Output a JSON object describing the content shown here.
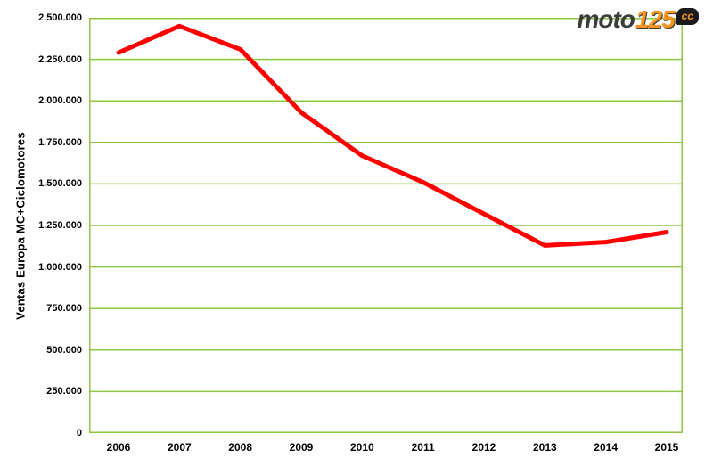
{
  "logo": {
    "word": "moto",
    "number": "125",
    "suffix": "cc"
  },
  "chart_data": {
    "type": "line",
    "title": "",
    "xlabel": "",
    "ylabel": "Ventas Europa MC+Ciclomotores",
    "categories": [
      "2006",
      "2007",
      "2008",
      "2009",
      "2010",
      "2011",
      "2012",
      "2013",
      "2014",
      "2015"
    ],
    "series": [
      {
        "name": "Ventas Europa MC+Ciclomotores",
        "color": "#ff0000",
        "values": [
          2290000,
          2450000,
          2310000,
          1930000,
          1670000,
          1510000,
          1320000,
          1130000,
          1150000,
          1210000
        ]
      }
    ],
    "ylim": [
      0,
      2500000
    ],
    "y_tick_step": 250000,
    "y_tick_labels": [
      "0",
      "250.000",
      "500.000",
      "750.000",
      "1.000.000",
      "1.250.000",
      "1.500.000",
      "1.750.000",
      "2.000.000",
      "2.250.000",
      "2.500.000"
    ],
    "grid": true,
    "grid_color": "#8dc63f",
    "axis_color": "#8dc63f",
    "background": "#ffffff",
    "legend": "none"
  }
}
